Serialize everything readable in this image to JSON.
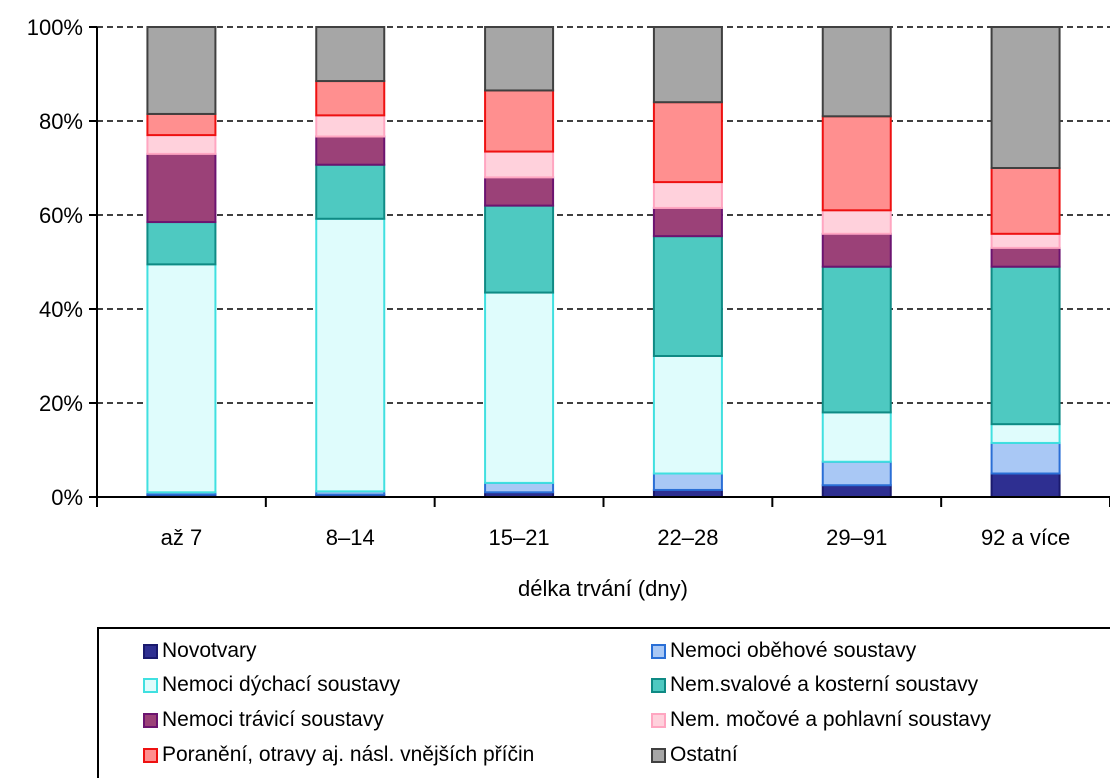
{
  "chart_data": {
    "type": "bar",
    "stacked": true,
    "normalized": true,
    "title": "",
    "xlabel": "délka trvání (dny)",
    "ylabel": "",
    "ylim": [
      0,
      100
    ],
    "y_ticks": [
      "0%",
      "20%",
      "40%",
      "60%",
      "80%",
      "100%"
    ],
    "grid": true,
    "legend_position": "bottom",
    "categories": [
      "až 7",
      "8–14",
      "15–21",
      "22–28",
      "29–91",
      "92 a více"
    ],
    "series": [
      {
        "name": "Novotvary",
        "color": "#2e2f91",
        "border": "#1a1a6e",
        "values": [
          0.5,
          0.5,
          1.0,
          1.5,
          2.5,
          5.0
        ]
      },
      {
        "name": "Nemoci oběhové soustavy",
        "color": "#a9c8f5",
        "border": "#2a6fd6",
        "values": [
          0.5,
          0.7,
          2.0,
          3.5,
          5.0,
          6.5
        ]
      },
      {
        "name": "Nemoci dýchací soustavy",
        "color": "#dffcfc",
        "border": "#40e0e0",
        "values": [
          48.5,
          58.0,
          40.5,
          25.0,
          10.5,
          4.0
        ]
      },
      {
        "name": "Nem.svalové a kosterní soustavy",
        "color": "#4ec9c1",
        "border": "#0f8a84",
        "values": [
          9.0,
          11.5,
          18.5,
          25.5,
          31.0,
          33.5
        ]
      },
      {
        "name": "Nemoci trávicí soustavy",
        "color": "#9b4178",
        "border": "#6c1470",
        "values": [
          14.5,
          6.0,
          6.0,
          6.0,
          7.0,
          4.0
        ]
      },
      {
        "name": "Nem. močové a pohlavní soustavy",
        "color": "#ffd1dc",
        "border": "#ffa6c1",
        "values": [
          4.0,
          4.5,
          5.5,
          5.5,
          5.0,
          3.0
        ]
      },
      {
        "name": "Poranění, otravy aj. násl. vnějších příčin",
        "color": "#ff8f8f",
        "border": "#ee1111",
        "values": [
          4.5,
          7.3,
          13.0,
          17.0,
          20.0,
          14.0
        ]
      },
      {
        "name": "Ostatní",
        "color": "#a6a6a6",
        "border": "#404040",
        "values": [
          18.5,
          11.5,
          13.5,
          16.0,
          19.0,
          30.0
        ]
      }
    ]
  }
}
